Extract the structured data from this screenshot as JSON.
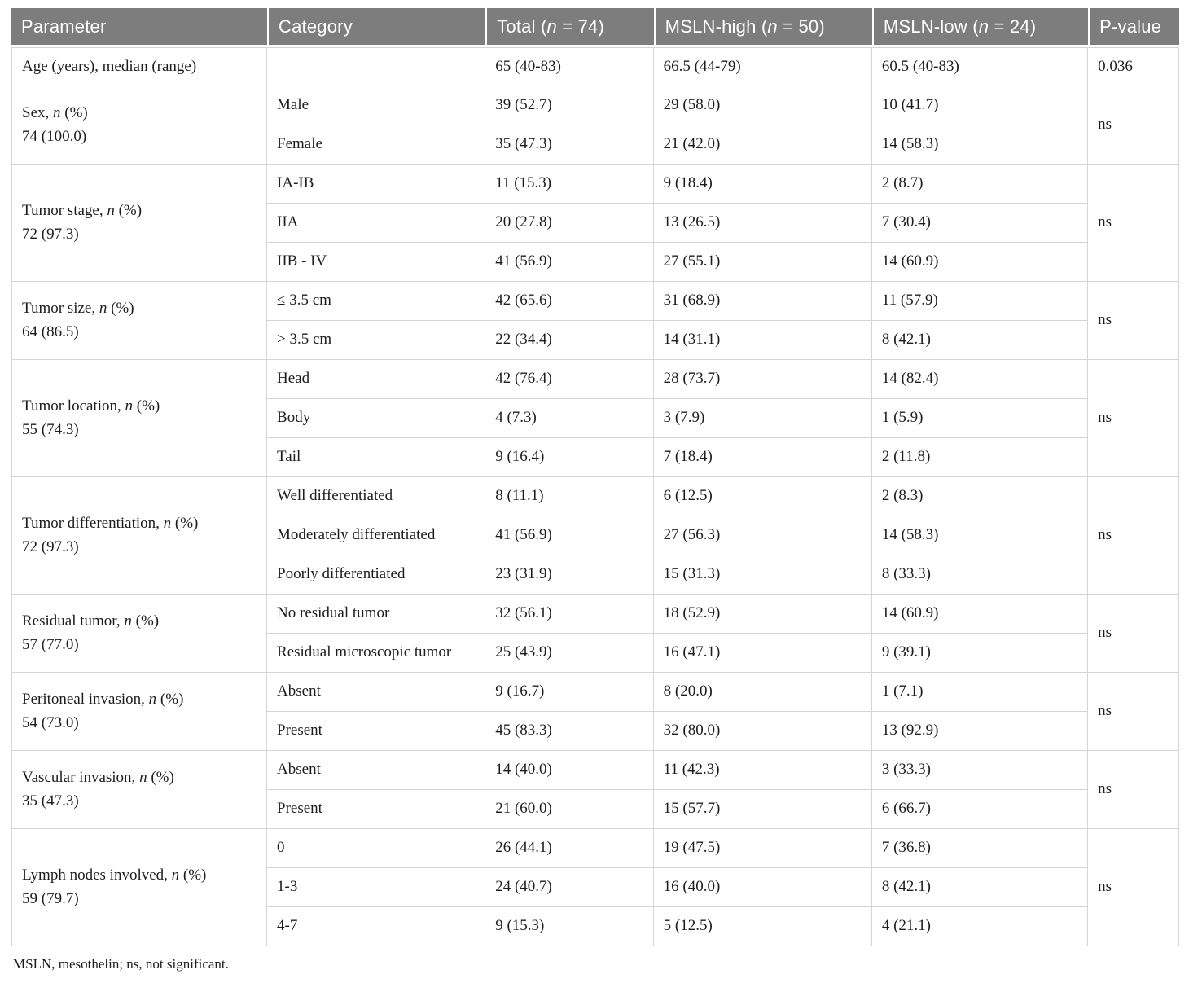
{
  "header": {
    "columns": [
      {
        "pre": "Parameter",
        "it": "",
        "post": ""
      },
      {
        "pre": "Category",
        "it": "",
        "post": ""
      },
      {
        "pre": "Total (",
        "it": "n",
        "post": " = 74)"
      },
      {
        "pre": "MSLN-high (",
        "it": "n",
        "post": " = 50)"
      },
      {
        "pre": "MSLN-low (",
        "it": "n",
        "post": " = 24)"
      },
      {
        "pre": "P-value",
        "it": "",
        "post": ""
      }
    ]
  },
  "groups": [
    {
      "parameter": {
        "pre": "Age (years), median (range)",
        "it": "",
        "post": "",
        "count": ""
      },
      "p": "0.036",
      "rows": [
        {
          "category": "",
          "total": "65 (40-83)",
          "high": "66.5 (44-79)",
          "low": "60.5 (40-83)"
        }
      ]
    },
    {
      "parameter": {
        "pre": "Sex, ",
        "it": "n",
        "post": " (%)",
        "count": "74 (100.0)"
      },
      "p": "ns",
      "rows": [
        {
          "category": "Male",
          "total": "39 (52.7)",
          "high": "29 (58.0)",
          "low": "10 (41.7)"
        },
        {
          "category": "Female",
          "total": "35 (47.3)",
          "high": "21 (42.0)",
          "low": "14 (58.3)"
        }
      ]
    },
    {
      "parameter": {
        "pre": "Tumor stage, ",
        "it": "n",
        "post": " (%)",
        "count": "72 (97.3)"
      },
      "p": "ns",
      "rows": [
        {
          "category": "IA-IB",
          "total": "11 (15.3)",
          "high": "9 (18.4)",
          "low": "2 (8.7)"
        },
        {
          "category": "IIA",
          "total": "20 (27.8)",
          "high": "13 (26.5)",
          "low": "7 (30.4)"
        },
        {
          "category": "IIB - IV",
          "total": "41 (56.9)",
          "high": "27 (55.1)",
          "low": "14 (60.9)"
        }
      ]
    },
    {
      "parameter": {
        "pre": "Tumor size, ",
        "it": "n",
        "post": " (%)",
        "count": "64 (86.5)"
      },
      "p": "ns",
      "rows": [
        {
          "category": "≤ 3.5 cm",
          "total": "42 (65.6)",
          "high": "31 (68.9)",
          "low": "11 (57.9)"
        },
        {
          "category": "> 3.5 cm",
          "total": "22 (34.4)",
          "high": "14 (31.1)",
          "low": "8 (42.1)"
        }
      ]
    },
    {
      "parameter": {
        "pre": "Tumor location, ",
        "it": "n",
        "post": " (%)",
        "count": "55 (74.3)"
      },
      "p": "ns",
      "rows": [
        {
          "category": "Head",
          "total": "42 (76.4)",
          "high": "28 (73.7)",
          "low": "14 (82.4)"
        },
        {
          "category": "Body",
          "total": "4 (7.3)",
          "high": "3 (7.9)",
          "low": "1 (5.9)"
        },
        {
          "category": "Tail",
          "total": "9 (16.4)",
          "high": "7 (18.4)",
          "low": "2 (11.8)"
        }
      ]
    },
    {
      "parameter": {
        "pre": "Tumor differentiation, ",
        "it": "n",
        "post": " (%)",
        "count": "72 (97.3)"
      },
      "p": "ns",
      "rows": [
        {
          "category": "Well differentiated",
          "total": "8 (11.1)",
          "high": "6 (12.5)",
          "low": "2 (8.3)"
        },
        {
          "category": "Moderately differentiated",
          "total": "41 (56.9)",
          "high": "27 (56.3)",
          "low": "14 (58.3)"
        },
        {
          "category": "Poorly differentiated",
          "total": "23 (31.9)",
          "high": "15 (31.3)",
          "low": "8 (33.3)"
        }
      ]
    },
    {
      "parameter": {
        "pre": "Residual tumor, ",
        "it": "n",
        "post": " (%)",
        "count": "57 (77.0)"
      },
      "p": "ns",
      "rows": [
        {
          "category": "No residual tumor",
          "total": "32 (56.1)",
          "high": "18 (52.9)",
          "low": "14 (60.9)"
        },
        {
          "category": "Residual microscopic tumor",
          "total": "25 (43.9)",
          "high": "16 (47.1)",
          "low": "9 (39.1)"
        }
      ]
    },
    {
      "parameter": {
        "pre": "Peritoneal invasion, ",
        "it": "n",
        "post": " (%)",
        "count": "54 (73.0)"
      },
      "p": "ns",
      "rows": [
        {
          "category": "Absent",
          "total": "9 (16.7)",
          "high": "8 (20.0)",
          "low": "1 (7.1)"
        },
        {
          "category": "Present",
          "total": "45 (83.3)",
          "high": "32 (80.0)",
          "low": "13 (92.9)"
        }
      ]
    },
    {
      "parameter": {
        "pre": "Vascular invasion, ",
        "it": "n",
        "post": " (%)",
        "count": "35 (47.3)"
      },
      "p": "ns",
      "rows": [
        {
          "category": "Absent",
          "total": "14 (40.0)",
          "high": "11 (42.3)",
          "low": "3 (33.3)"
        },
        {
          "category": "Present",
          "total": "21 (60.0)",
          "high": "15 (57.7)",
          "low": "6 (66.7)"
        }
      ]
    },
    {
      "parameter": {
        "pre": "Lymph nodes involved, ",
        "it": "n",
        "post": " (%)",
        "count": "59 (79.7)"
      },
      "p": "ns",
      "rows": [
        {
          "category": "0",
          "total": "26 (44.1)",
          "high": "19 (47.5)",
          "low": "7 (36.8)"
        },
        {
          "category": "1-3",
          "total": "24 (40.7)",
          "high": "16 (40.0)",
          "low": "8 (42.1)"
        },
        {
          "category": "4-7",
          "total": "9 (15.3)",
          "high": "5 (12.5)",
          "low": "4 (21.1)"
        }
      ]
    }
  ],
  "footnote": "MSLN, mesothelin; ns, not significant.",
  "colors": {
    "header_bg": "#7d7d7d",
    "header_text": "#ffffff",
    "border": "#d4d4d4",
    "text": "#1d1d1d"
  }
}
